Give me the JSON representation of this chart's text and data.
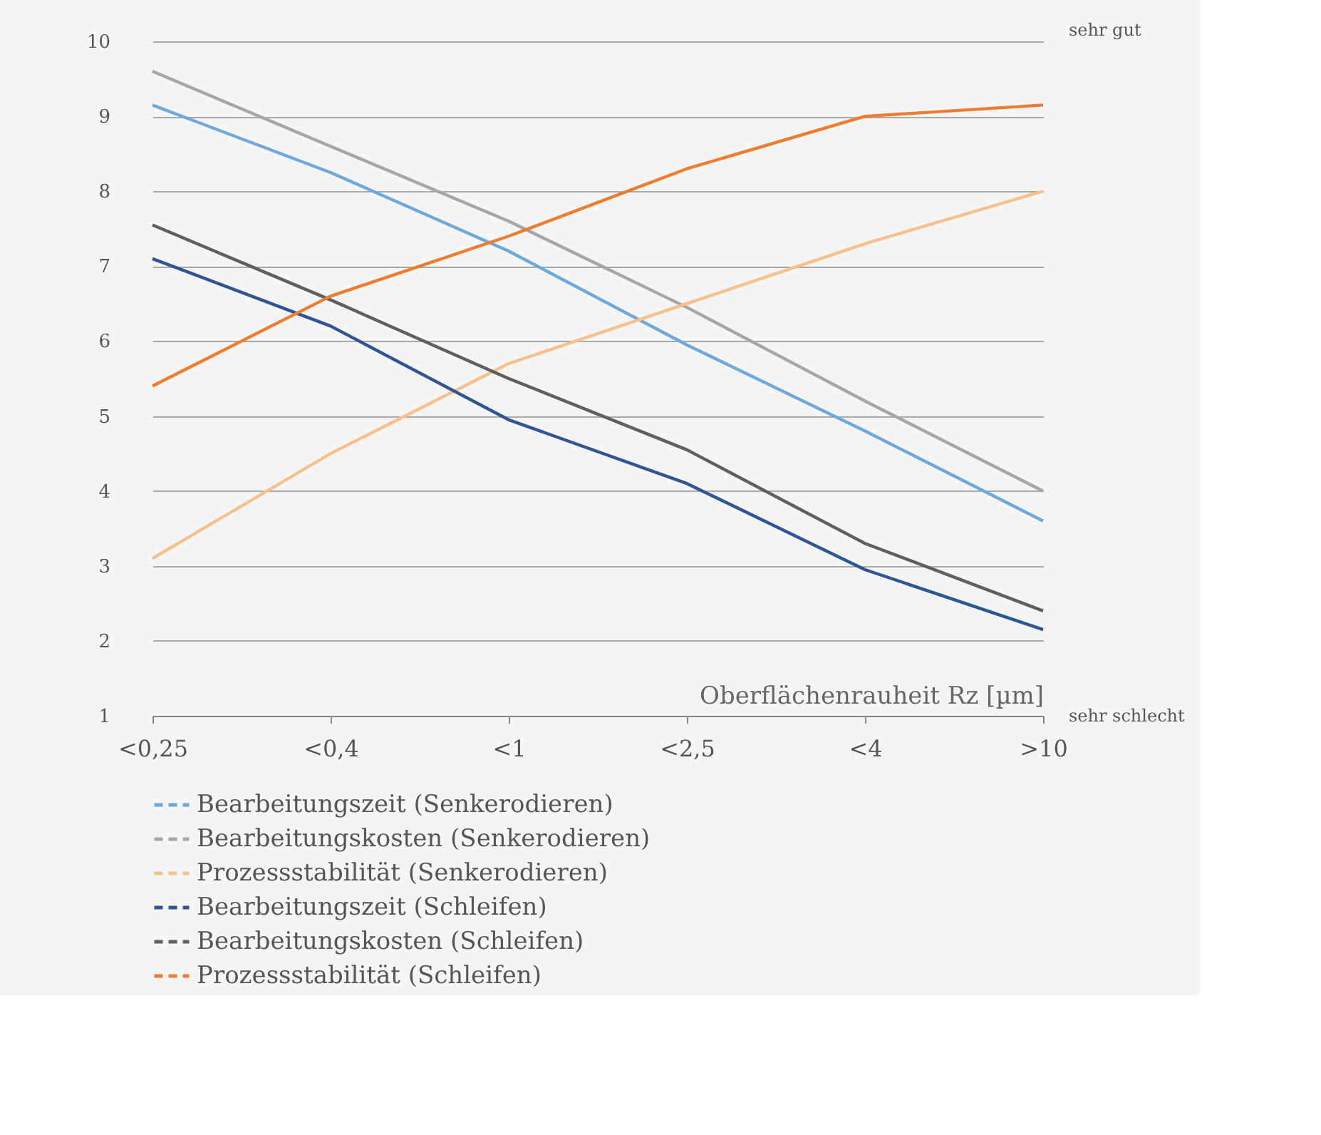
{
  "chart_data": {
    "type": "line",
    "xlabel": "Oberflächenrauheit Rz [µm]",
    "categories": [
      "<0,25",
      "<0,4",
      "<1",
      "<2,5",
      "<4",
      ">10"
    ],
    "series": [
      {
        "name": "Bearbeitungszeit (Senkerodieren)",
        "color": "#6fa8dc",
        "values": [
          9.15,
          8.25,
          7.2,
          5.95,
          4.8,
          3.6
        ]
      },
      {
        "name": "Bearbeitungskosten (Senkerodieren)",
        "color": "#a6a6a6",
        "values": [
          9.6,
          8.6,
          7.6,
          6.45,
          5.2,
          4.0
        ]
      },
      {
        "name": "Prozessstabilität (Senkerodieren)",
        "color": "#f8c08c",
        "values": [
          3.1,
          4.5,
          5.7,
          6.5,
          7.3,
          8.0
        ]
      },
      {
        "name": "Bearbeitungszeit (Schleifen)",
        "color": "#2f5597",
        "values": [
          7.1,
          6.2,
          4.95,
          4.1,
          2.95,
          2.15
        ]
      },
      {
        "name": "Bearbeitungskosten (Schleifen)",
        "color": "#5f5f5f",
        "values": [
          7.55,
          6.55,
          5.5,
          4.55,
          3.3,
          2.4
        ]
      },
      {
        "name": "Prozessstabilität (Schleifen)",
        "color": "#ed7d31",
        "values": [
          5.4,
          6.6,
          7.4,
          8.3,
          9.0,
          9.15
        ]
      }
    ],
    "ylim": [
      1,
      10
    ],
    "yticks": [
      1,
      2,
      3,
      4,
      5,
      6,
      7,
      8,
      9,
      10
    ],
    "grid": "y",
    "legend": "bottom",
    "marker": "none",
    "line_style": "solid",
    "annotations": [
      "sehr gut",
      "sehr schlecht"
    ]
  }
}
